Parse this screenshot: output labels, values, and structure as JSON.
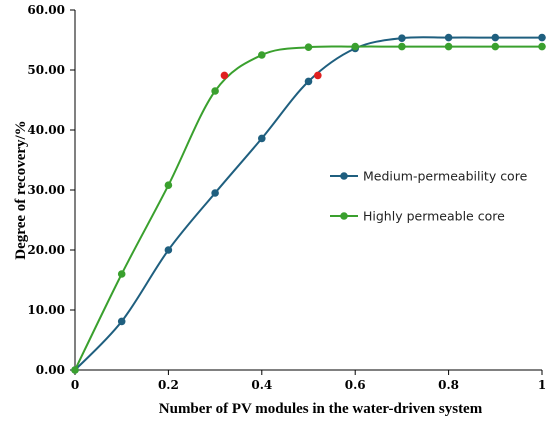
{
  "chart_data": {
    "type": "line",
    "xlabel": "Number of PV modules in the water-driven system",
    "ylabel": "Degree of recovery/%",
    "xlim": [
      0,
      1
    ],
    "ylim": [
      0,
      60
    ],
    "x_ticks": [
      "0",
      "0.2",
      "0.4",
      "0.6",
      "0.8",
      "1"
    ],
    "y_ticks": [
      "0.00",
      "10.00",
      "20.00",
      "30.00",
      "40.00",
      "50.00",
      "60.00"
    ],
    "grid": false,
    "legend_position": "right-middle",
    "smooth": true,
    "series": [
      {
        "name": "Medium-permeability core",
        "color": "#1f5f7f",
        "points": [
          [
            0,
            0
          ],
          [
            0.1,
            8.1
          ],
          [
            0.2,
            20.0
          ],
          [
            0.3,
            29.5
          ],
          [
            0.4,
            38.6
          ],
          [
            0.5,
            48.1
          ],
          [
            0.6,
            53.6
          ],
          [
            0.7,
            55.3
          ],
          [
            0.8,
            55.4
          ],
          [
            0.9,
            55.4
          ],
          [
            1.0,
            55.4
          ]
        ],
        "highlight": {
          "x": 0.52,
          "y": 49.1,
          "color": "#e02020"
        }
      },
      {
        "name": "Highly permeable core",
        "color": "#3aa02e",
        "points": [
          [
            0,
            0
          ],
          [
            0.1,
            16.0
          ],
          [
            0.2,
            30.8
          ],
          [
            0.3,
            46.5
          ],
          [
            0.4,
            52.5
          ],
          [
            0.5,
            53.8
          ],
          [
            0.6,
            53.9
          ],
          [
            0.7,
            53.9
          ],
          [
            0.8,
            53.9
          ],
          [
            0.9,
            53.9
          ],
          [
            1.0,
            53.9
          ]
        ],
        "highlight": {
          "x": 0.32,
          "y": 49.1,
          "color": "#e02020"
        }
      }
    ]
  }
}
